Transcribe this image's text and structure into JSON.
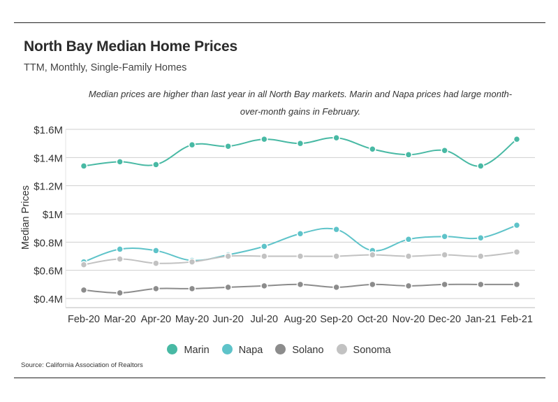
{
  "title": "North Bay Median Home Prices",
  "subtitle": "TTM, Monthly, Single-Family Homes",
  "annotation": "Median prices are higher than last year in all North Bay markets. Marin and Napa prices had large month-over-month gains in February.",
  "source": "Source:  California Association of Realtors",
  "chart_data": {
    "type": "line",
    "ylabel": "Median Prices",
    "xlabel": "",
    "ylim": [
      0.38,
      1.6
    ],
    "yticks": [
      0.4,
      0.6,
      0.8,
      1.0,
      1.2,
      1.4,
      1.6
    ],
    "ytick_labels": [
      "$0.4M",
      "$0.6M",
      "$0.8M",
      "$1M",
      "$1.2M",
      "$1.4M",
      "$1.6M"
    ],
    "categories": [
      "Feb-20",
      "Mar-20",
      "Apr-20",
      "May-20",
      "Jun-20",
      "Jul-20",
      "Aug-20",
      "Sep-20",
      "Oct-20",
      "Nov-20",
      "Dec-20",
      "Jan-21",
      "Feb-21"
    ],
    "grid": "horizontal",
    "legend_position": "bottom",
    "series": [
      {
        "name": "Marin",
        "color": "#48b9a4",
        "values": [
          1.34,
          1.37,
          1.35,
          1.49,
          1.48,
          1.53,
          1.5,
          1.54,
          1.46,
          1.42,
          1.45,
          1.34,
          1.53
        ]
      },
      {
        "name": "Napa",
        "color": "#5ec3c9",
        "values": [
          0.66,
          0.75,
          0.74,
          0.67,
          0.71,
          0.77,
          0.86,
          0.89,
          0.74,
          0.82,
          0.84,
          0.83,
          0.92
        ]
      },
      {
        "name": "Solano",
        "color": "#8c8c8c",
        "values": [
          0.46,
          0.44,
          0.47,
          0.47,
          0.48,
          0.49,
          0.5,
          0.48,
          0.5,
          0.49,
          0.5,
          0.5,
          0.5
        ]
      },
      {
        "name": "Sonoma",
        "color": "#c2c2c2",
        "values": [
          0.64,
          0.68,
          0.65,
          0.66,
          0.7,
          0.7,
          0.7,
          0.7,
          0.71,
          0.7,
          0.71,
          0.7,
          0.73
        ]
      }
    ]
  }
}
